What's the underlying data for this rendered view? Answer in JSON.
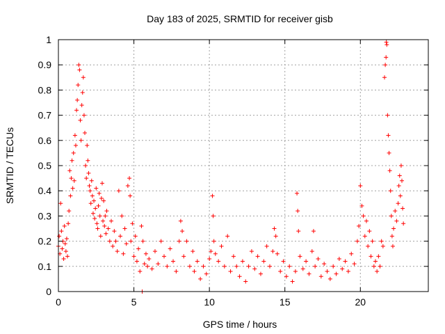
{
  "chart_data": {
    "type": "scatter",
    "title": "Day 183 of 2025, SRMTID for receiver gisb",
    "xlabel": "GPS time / hours",
    "ylabel": "SRMTID / TECUs",
    "xlim": [
      0,
      24.5
    ],
    "ylim": [
      0,
      1
    ],
    "x_ticks": [
      0,
      5,
      10,
      15,
      20
    ],
    "x_tick_labels": [
      "0",
      "5",
      "10",
      "15",
      "20"
    ],
    "y_ticks": [
      0,
      0.1,
      0.2,
      0.3,
      0.4,
      0.5,
      0.6,
      0.7,
      0.8,
      0.9,
      1
    ],
    "y_tick_labels": [
      "0",
      "0.1",
      "0.2",
      "0.3",
      "0.4",
      "0.5",
      "0.6",
      "0.7",
      "0.8",
      "0.9",
      "1"
    ],
    "grid": true,
    "marker": "+",
    "color": "#ff0000",
    "series": [
      {
        "name": "SRMTID",
        "points": [
          [
            0.0,
            0.18
          ],
          [
            0.05,
            0.22
          ],
          [
            0.1,
            0.15
          ],
          [
            0.15,
            0.35
          ],
          [
            0.2,
            0.24
          ],
          [
            0.25,
            0.17
          ],
          [
            0.3,
            0.2
          ],
          [
            0.35,
            0.13
          ],
          [
            0.4,
            0.26
          ],
          [
            0.45,
            0.19
          ],
          [
            0.5,
            0.16
          ],
          [
            0.55,
            0.21
          ],
          [
            0.6,
            0.14
          ],
          [
            0.65,
            0.27
          ],
          [
            0.7,
            0.32
          ],
          [
            0.75,
            0.48
          ],
          [
            0.8,
            0.38
          ],
          [
            0.85,
            0.45
          ],
          [
            0.9,
            0.52
          ],
          [
            0.95,
            0.41
          ],
          [
            1.0,
            0.55
          ],
          [
            1.05,
            0.44
          ],
          [
            1.1,
            0.62
          ],
          [
            1.15,
            0.58
          ],
          [
            1.2,
            0.72
          ],
          [
            1.25,
            0.76
          ],
          [
            1.3,
            0.82
          ],
          [
            1.35,
            0.9
          ],
          [
            1.4,
            0.88
          ],
          [
            1.45,
            0.68
          ],
          [
            1.5,
            0.6
          ],
          [
            1.55,
            0.74
          ],
          [
            1.6,
            0.79
          ],
          [
            1.65,
            0.85
          ],
          [
            1.7,
            0.7
          ],
          [
            1.75,
            0.63
          ],
          [
            1.8,
            0.5
          ],
          [
            1.85,
            0.45
          ],
          [
            1.9,
            0.58
          ],
          [
            1.95,
            0.52
          ],
          [
            2.0,
            0.47
          ],
          [
            2.05,
            0.42
          ],
          [
            2.1,
            0.4
          ],
          [
            2.15,
            0.35
          ],
          [
            2.2,
            0.44
          ],
          [
            2.25,
            0.38
          ],
          [
            2.3,
            0.31
          ],
          [
            2.35,
            0.36
          ],
          [
            2.4,
            0.29
          ],
          [
            2.45,
            0.33
          ],
          [
            2.5,
            0.41
          ],
          [
            2.55,
            0.27
          ],
          [
            2.6,
            0.25
          ],
          [
            2.65,
            0.34
          ],
          [
            2.7,
            0.39
          ],
          [
            2.75,
            0.3
          ],
          [
            2.8,
            0.22
          ],
          [
            2.85,
            0.37
          ],
          [
            2.9,
            0.43
          ],
          [
            2.95,
            0.28
          ],
          [
            3.0,
            0.36
          ],
          [
            3.05,
            0.26
          ],
          [
            3.1,
            0.3
          ],
          [
            3.15,
            0.23
          ],
          [
            3.2,
            0.32
          ],
          [
            3.3,
            0.25
          ],
          [
            3.4,
            0.2
          ],
          [
            3.5,
            0.28
          ],
          [
            3.6,
            0.18
          ],
          [
            3.7,
            0.24
          ],
          [
            3.8,
            0.2
          ],
          [
            3.9,
            0.16
          ],
          [
            4.0,
            0.4
          ],
          [
            4.1,
            0.22
          ],
          [
            4.2,
            0.3
          ],
          [
            4.3,
            0.15
          ],
          [
            4.4,
            0.25
          ],
          [
            4.5,
            0.19
          ],
          [
            4.6,
            0.42
          ],
          [
            4.7,
            0.45
          ],
          [
            4.75,
            0.38
          ],
          [
            4.8,
            0.2
          ],
          [
            4.9,
            0.27
          ],
          [
            5.0,
            0.14
          ],
          [
            5.1,
            0.22
          ],
          [
            5.2,
            0.12
          ],
          [
            5.3,
            0.17
          ],
          [
            5.4,
            0.08
          ],
          [
            5.5,
            0.26
          ],
          [
            5.55,
            0.0
          ],
          [
            5.6,
            0.2
          ],
          [
            5.7,
            0.11
          ],
          [
            5.8,
            0.15
          ],
          [
            5.9,
            0.1
          ],
          [
            6.0,
            0.13
          ],
          [
            6.2,
            0.09
          ],
          [
            6.4,
            0.16
          ],
          [
            6.6,
            0.11
          ],
          [
            6.8,
            0.2
          ],
          [
            7.0,
            0.14
          ],
          [
            7.2,
            0.1
          ],
          [
            7.4,
            0.17
          ],
          [
            7.6,
            0.12
          ],
          [
            7.8,
            0.08
          ],
          [
            8.0,
            0.2
          ],
          [
            8.1,
            0.28
          ],
          [
            8.2,
            0.24
          ],
          [
            8.3,
            0.14
          ],
          [
            8.5,
            0.2
          ],
          [
            8.7,
            0.1
          ],
          [
            8.9,
            0.16
          ],
          [
            9.0,
            0.08
          ],
          [
            9.2,
            0.12
          ],
          [
            9.4,
            0.05
          ],
          [
            9.6,
            0.1
          ],
          [
            9.8,
            0.07
          ],
          [
            10.0,
            0.13
          ],
          [
            10.1,
            0.16
          ],
          [
            10.2,
            0.38
          ],
          [
            10.25,
            0.3
          ],
          [
            10.3,
            0.2
          ],
          [
            10.4,
            0.15
          ],
          [
            10.6,
            0.12
          ],
          [
            10.8,
            0.18
          ],
          [
            11.0,
            0.1
          ],
          [
            11.2,
            0.22
          ],
          [
            11.4,
            0.08
          ],
          [
            11.6,
            0.14
          ],
          [
            11.8,
            0.1
          ],
          [
            12.0,
            0.06
          ],
          [
            12.2,
            0.12
          ],
          [
            12.4,
            0.04
          ],
          [
            12.6,
            0.1
          ],
          [
            12.8,
            0.16
          ],
          [
            13.0,
            0.09
          ],
          [
            13.2,
            0.14
          ],
          [
            13.4,
            0.07
          ],
          [
            13.6,
            0.12
          ],
          [
            13.8,
            0.18
          ],
          [
            14.0,
            0.1
          ],
          [
            14.2,
            0.16
          ],
          [
            14.3,
            0.25
          ],
          [
            14.4,
            0.22
          ],
          [
            14.5,
            0.15
          ],
          [
            14.7,
            0.08
          ],
          [
            14.9,
            0.12
          ],
          [
            15.1,
            0.06
          ],
          [
            15.3,
            0.1
          ],
          [
            15.5,
            0.04
          ],
          [
            15.7,
            0.08
          ],
          [
            15.8,
            0.39
          ],
          [
            15.85,
            0.32
          ],
          [
            15.9,
            0.24
          ],
          [
            16.0,
            0.14
          ],
          [
            16.2,
            0.09
          ],
          [
            16.4,
            0.12
          ],
          [
            16.6,
            0.07
          ],
          [
            16.8,
            0.16
          ],
          [
            16.9,
            0.24
          ],
          [
            17.0,
            0.1
          ],
          [
            17.2,
            0.13
          ],
          [
            17.4,
            0.06
          ],
          [
            17.6,
            0.11
          ],
          [
            17.8,
            0.08
          ],
          [
            18.0,
            0.05
          ],
          [
            18.2,
            0.1
          ],
          [
            18.4,
            0.07
          ],
          [
            18.6,
            0.13
          ],
          [
            18.8,
            0.09
          ],
          [
            19.0,
            0.12
          ],
          [
            19.2,
            0.08
          ],
          [
            19.4,
            0.15
          ],
          [
            19.6,
            0.11
          ],
          [
            19.8,
            0.2
          ],
          [
            19.9,
            0.26
          ],
          [
            20.0,
            0.42
          ],
          [
            20.1,
            0.34
          ],
          [
            20.2,
            0.3
          ],
          [
            20.3,
            0.22
          ],
          [
            20.4,
            0.28
          ],
          [
            20.5,
            0.18
          ],
          [
            20.6,
            0.24
          ],
          [
            20.7,
            0.14
          ],
          [
            20.8,
            0.2
          ],
          [
            20.9,
            0.1
          ],
          [
            21.0,
            0.12
          ],
          [
            21.1,
            0.08
          ],
          [
            21.2,
            0.14
          ],
          [
            21.3,
            0.1
          ],
          [
            21.4,
            0.2
          ],
          [
            21.5,
            0.18
          ],
          [
            21.6,
            0.85
          ],
          [
            21.65,
            0.9
          ],
          [
            21.7,
            0.93
          ],
          [
            21.72,
            0.99
          ],
          [
            21.75,
            0.98
          ],
          [
            21.8,
            0.7
          ],
          [
            21.85,
            0.62
          ],
          [
            21.9,
            0.55
          ],
          [
            21.95,
            0.48
          ],
          [
            22.0,
            0.4
          ],
          [
            22.05,
            0.3
          ],
          [
            22.1,
            0.22
          ],
          [
            22.15,
            0.18
          ],
          [
            22.2,
            0.25
          ],
          [
            22.3,
            0.32
          ],
          [
            22.4,
            0.28
          ],
          [
            22.5,
            0.35
          ],
          [
            22.55,
            0.42
          ],
          [
            22.6,
            0.46
          ],
          [
            22.65,
            0.38
          ],
          [
            22.7,
            0.5
          ],
          [
            22.75,
            0.44
          ],
          [
            22.8,
            0.33
          ],
          [
            22.85,
            0.27
          ]
        ]
      }
    ]
  }
}
